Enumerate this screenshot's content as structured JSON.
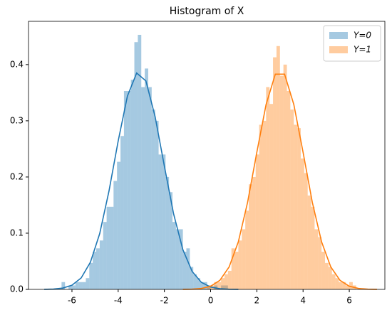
{
  "chart_data": {
    "type": "histogram",
    "title": "Histogram of X",
    "xlim": [
      -7.88,
      7.54
    ],
    "ylim": [
      0,
      0.477
    ],
    "xticks": [
      -6,
      -4,
      -2,
      0,
      2,
      4,
      6
    ],
    "yticks": [
      {
        "value": 0,
        "label": "0.0"
      },
      0.1,
      0.2,
      0.3,
      0.4
    ],
    "grid": false,
    "legend": "upper right",
    "opacity": 0.4,
    "series": [
      {
        "name": "Y=0",
        "color": "#1f77b4",
        "bins": [
          -6.45,
          -6.3,
          -6.15,
          -6,
          -5.85,
          -5.7,
          -5.55,
          -5.4,
          -5.25,
          -5.1,
          -4.95,
          -4.8,
          -4.65,
          -4.5,
          -4.35,
          -4.2,
          -4.05,
          -3.9,
          -3.75,
          -3.6,
          -3.45,
          -3.3,
          -3.15,
          -3,
          -2.85,
          -2.7,
          -2.55,
          -2.4,
          -2.25,
          -2.1,
          -1.95,
          -1.8,
          -1.65,
          -1.5,
          -1.35,
          -1.2,
          -1.05,
          -0.9,
          -0.75,
          -0.6,
          -0.45,
          -0.3,
          -0.15,
          0,
          0.15,
          0.3,
          0.45,
          0.6,
          0.75
        ],
        "values": [
          0.013,
          0,
          0.007,
          0.007,
          0.013,
          0.013,
          0.013,
          0.02,
          0.047,
          0.067,
          0.073,
          0.087,
          0.12,
          0.147,
          0.147,
          0.193,
          0.227,
          0.273,
          0.353,
          0.353,
          0.373,
          0.44,
          0.453,
          0.36,
          0.393,
          0.36,
          0.32,
          0.3,
          0.24,
          0.24,
          0.2,
          0.173,
          0.12,
          0.107,
          0.107,
          0.067,
          0.073,
          0.04,
          0.027,
          0.02,
          0.013,
          0.013,
          0.007,
          0,
          0.007,
          0,
          0.007,
          0.007
        ],
        "kde_x": [
          -7.2,
          -6.8,
          -6.4,
          -6,
          -5.6,
          -5.2,
          -4.8,
          -4.4,
          -4,
          -3.6,
          -3.2,
          -2.8,
          -2.4,
          -2,
          -1.6,
          -1.2,
          -0.8,
          -0.4,
          0,
          0.4,
          0.8,
          1.2
        ],
        "kde_values": [
          0.0001,
          0.0006,
          0.0023,
          0.0074,
          0.0204,
          0.0485,
          0.0991,
          0.1745,
          0.264,
          0.344,
          0.385,
          0.371,
          0.307,
          0.219,
          0.134,
          0.0706,
          0.032,
          0.0125,
          0.0042,
          0.0012,
          0.0003,
          0.0001
        ]
      },
      {
        "name": "Y=1",
        "color": "#ff7f0e",
        "bins": [
          -0.3,
          -0.15,
          0,
          0.15,
          0.3,
          0.45,
          0.6,
          0.75,
          0.9,
          1.05,
          1.2,
          1.35,
          1.5,
          1.65,
          1.8,
          1.95,
          2.1,
          2.25,
          2.4,
          2.55,
          2.7,
          2.85,
          3,
          3.15,
          3.3,
          3.45,
          3.6,
          3.75,
          3.9,
          4.05,
          4.2,
          4.35,
          4.5,
          4.65,
          4.8,
          4.95,
          5.1,
          5.25,
          5.4,
          5.55,
          5.7,
          5.85,
          6,
          6.15,
          6.3,
          6.45
        ],
        "values": [
          0,
          0.007,
          0.007,
          0.013,
          0.013,
          0.02,
          0.027,
          0.033,
          0.073,
          0.067,
          0.087,
          0.107,
          0.14,
          0.187,
          0.2,
          0.24,
          0.293,
          0.3,
          0.36,
          0.33,
          0.413,
          0.433,
          0.38,
          0.4,
          0.353,
          0.32,
          0.293,
          0.287,
          0.233,
          0.207,
          0.167,
          0.147,
          0.107,
          0.093,
          0.067,
          0.047,
          0.04,
          0.027,
          0.02,
          0.013,
          0.013,
          0.007,
          0.013,
          0.007,
          0
        ],
        "kde_x": [
          -1.2,
          -0.8,
          -0.4,
          0,
          0.4,
          0.8,
          1.2,
          1.6,
          2,
          2.4,
          2.8,
          3.2,
          3.6,
          4,
          4.4,
          4.8,
          5.2,
          5.6,
          6,
          6.4,
          6.8,
          7.2
        ],
        "kde_values": [
          0.0001,
          0.0004,
          0.0017,
          0.0056,
          0.0161,
          0.0399,
          0.0847,
          0.155,
          0.244,
          0.329,
          0.383,
          0.383,
          0.329,
          0.244,
          0.155,
          0.0847,
          0.0399,
          0.0161,
          0.0056,
          0.0017,
          0.0004,
          0.0001
        ]
      }
    ]
  }
}
